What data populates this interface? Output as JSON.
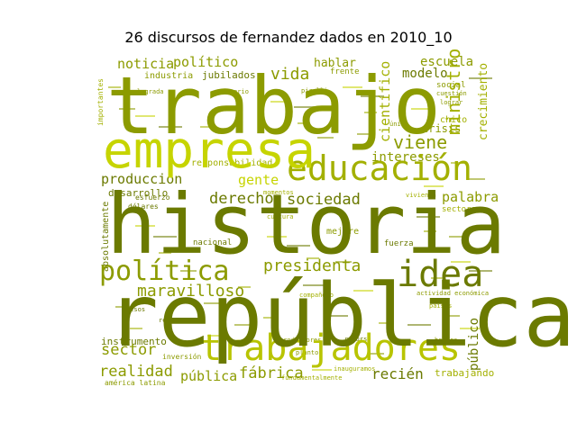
{
  "chart_data": {
    "type": "wordcloud",
    "title": "26 discursos de fernandez dados en 2010_10",
    "palette": [
      "#8c9b00",
      "#6b7a00",
      "#a3b000",
      "#c6d400",
      "#d4e000",
      "#7a8a00",
      "#b8c400"
    ],
    "words": [
      {
        "text": "trabajo",
        "weight": 100,
        "color": "#8c9b00"
      },
      {
        "text": "historia",
        "weight": 98,
        "color": "#6b7a00"
      },
      {
        "text": "república",
        "weight": 97,
        "color": "#6b7a00"
      },
      {
        "text": "empresa",
        "weight": 70,
        "color": "#c6d400"
      },
      {
        "text": "trabajadores",
        "weight": 55,
        "color": "#b8c400"
      },
      {
        "text": "educación",
        "weight": 48,
        "color": "#a3b000"
      },
      {
        "text": "idea",
        "weight": 45,
        "color": "#6b7a00"
      },
      {
        "text": "política",
        "weight": 38,
        "color": "#8c9b00"
      },
      {
        "text": "presidenta",
        "weight": 26,
        "color": "#8c9b00"
      },
      {
        "text": "maravilloso",
        "weight": 24,
        "color": "#8c9b00"
      },
      {
        "text": "sociedad",
        "weight": 22,
        "color": "#6b7a00"
      },
      {
        "text": "viene",
        "weight": 22,
        "color": "#8c9b00"
      },
      {
        "text": "ministro",
        "weight": 21,
        "color": "#a3b000"
      },
      {
        "text": "vida",
        "weight": 21,
        "color": "#8c9b00"
      },
      {
        "text": "sector",
        "weight": 20,
        "color": "#8c9b00"
      },
      {
        "text": "realidad",
        "weight": 19,
        "color": "#8c9b00"
      },
      {
        "text": "fábrica",
        "weight": 19,
        "color": "#8c9b00"
      },
      {
        "text": "recién",
        "weight": 19,
        "color": "#6b7a00"
      },
      {
        "text": "derecho",
        "weight": 19,
        "color": "#6b7a00"
      },
      {
        "text": "producción",
        "weight": 18,
        "color": "#6b7a00"
      },
      {
        "text": "gente",
        "weight": 18,
        "color": "#c6d400"
      },
      {
        "text": "intereses",
        "weight": 17,
        "color": "#8c9b00"
      },
      {
        "text": "escuela",
        "weight": 17,
        "color": "#8c9b00"
      },
      {
        "text": "científico",
        "weight": 17,
        "color": "#a3b000"
      },
      {
        "text": "crecimiento",
        "weight": 17,
        "color": "#a3b000"
      },
      {
        "text": "palabra",
        "weight": 16,
        "color": "#8c9b00"
      },
      {
        "text": "público",
        "weight": 15,
        "color": "#6b7a00"
      },
      {
        "text": "pública",
        "weight": 15,
        "color": "#8c9b00"
      },
      {
        "text": "político",
        "weight": 15,
        "color": "#8c9b00"
      },
      {
        "text": "noticia",
        "weight": 14,
        "color": "#8c9b00"
      },
      {
        "text": "modelo",
        "weight": 14,
        "color": "#6b7a00"
      },
      {
        "text": "hablar",
        "weight": 13,
        "color": "#8c9b00"
      },
      {
        "text": "crisis",
        "weight": 12,
        "color": "#8c9b00"
      },
      {
        "text": "trabajando",
        "weight": 11,
        "color": "#a3b000"
      },
      {
        "text": "instrumento",
        "weight": 11,
        "color": "#6b7a00"
      },
      {
        "text": "desarrollo",
        "weight": 11,
        "color": "#6b7a00"
      },
      {
        "text": "responsabilidad",
        "weight": 10,
        "color": "#a3b000"
      },
      {
        "text": "jubilados",
        "weight": 10,
        "color": "#6b7a00"
      },
      {
        "text": "industria",
        "weight": 10,
        "color": "#8c9b00"
      },
      {
        "text": "absolutamente",
        "weight": 10,
        "color": "#6b7a00"
      },
      {
        "text": "sectores",
        "weight": 9,
        "color": "#a3b000"
      },
      {
        "text": "fuerza",
        "weight": 9,
        "color": "#6b7a00"
      },
      {
        "text": "mejore",
        "weight": 9,
        "color": "#8c9b00"
      },
      {
        "text": "nacional",
        "weight": 9,
        "color": "#6b7a00"
      },
      {
        "text": "frente",
        "weight": 9,
        "color": "#8c9b00"
      },
      {
        "text": "social",
        "weight": 9,
        "color": "#8c9b00"
      },
      {
        "text": "chico",
        "weight": 9,
        "color": "#a3b000"
      },
      {
        "text": "esfuerzo",
        "weight": 8,
        "color": "#6b7a00"
      },
      {
        "text": "dólares",
        "weight": 8,
        "color": "#6b7a00"
      },
      {
        "text": "inversión",
        "weight": 8,
        "color": "#8c9b00"
      },
      {
        "text": "américa latina",
        "weight": 8,
        "color": "#8c9b00"
      },
      {
        "text": "importantes",
        "weight": 8,
        "color": "#a3b000"
      },
      {
        "text": "lograda",
        "weight": 7,
        "color": "#8c9b00"
      },
      {
        "text": "contrario",
        "weight": 7,
        "color": "#8c9b00"
      },
      {
        "text": "compañero",
        "weight": 7,
        "color": "#a3b000"
      },
      {
        "text": "productores",
        "weight": 7,
        "color": "#8c9b00"
      },
      {
        "text": "recurso",
        "weight": 7,
        "color": "#6b7a00"
      },
      {
        "text": "hombre",
        "weight": 7,
        "color": "#8c9b00"
      },
      {
        "text": "países",
        "weight": 7,
        "color": "#a3b000"
      },
      {
        "text": "actividad económica",
        "weight": 7,
        "color": "#8c9b00"
      },
      {
        "text": "cultura",
        "weight": 7,
        "color": "#a3b000"
      },
      {
        "text": "momentos",
        "weight": 7,
        "color": "#a3b000"
      },
      {
        "text": "planto",
        "weight": 7,
        "color": "#8c9b00"
      },
      {
        "text": "reserva",
        "weight": 7,
        "color": "#6b7a00"
      },
      {
        "text": "pesos",
        "weight": 6,
        "color": "#6b7a00"
      },
      {
        "text": "vivienda",
        "weight": 6,
        "color": "#a3b000"
      },
      {
        "text": "lograr",
        "weight": 6,
        "color": "#8c9b00"
      },
      {
        "text": "cuestión",
        "weight": 6,
        "color": "#8c9b00"
      },
      {
        "text": "única",
        "weight": 6,
        "color": "#8c9b00"
      },
      {
        "text": "pirelli",
        "weight": 6,
        "color": "#8c9b00"
      },
      {
        "text": "fundamentalmente",
        "weight": 6,
        "color": "#a3b000"
      },
      {
        "text": "inauguramos",
        "weight": 6,
        "color": "#a3b000"
      }
    ]
  }
}
